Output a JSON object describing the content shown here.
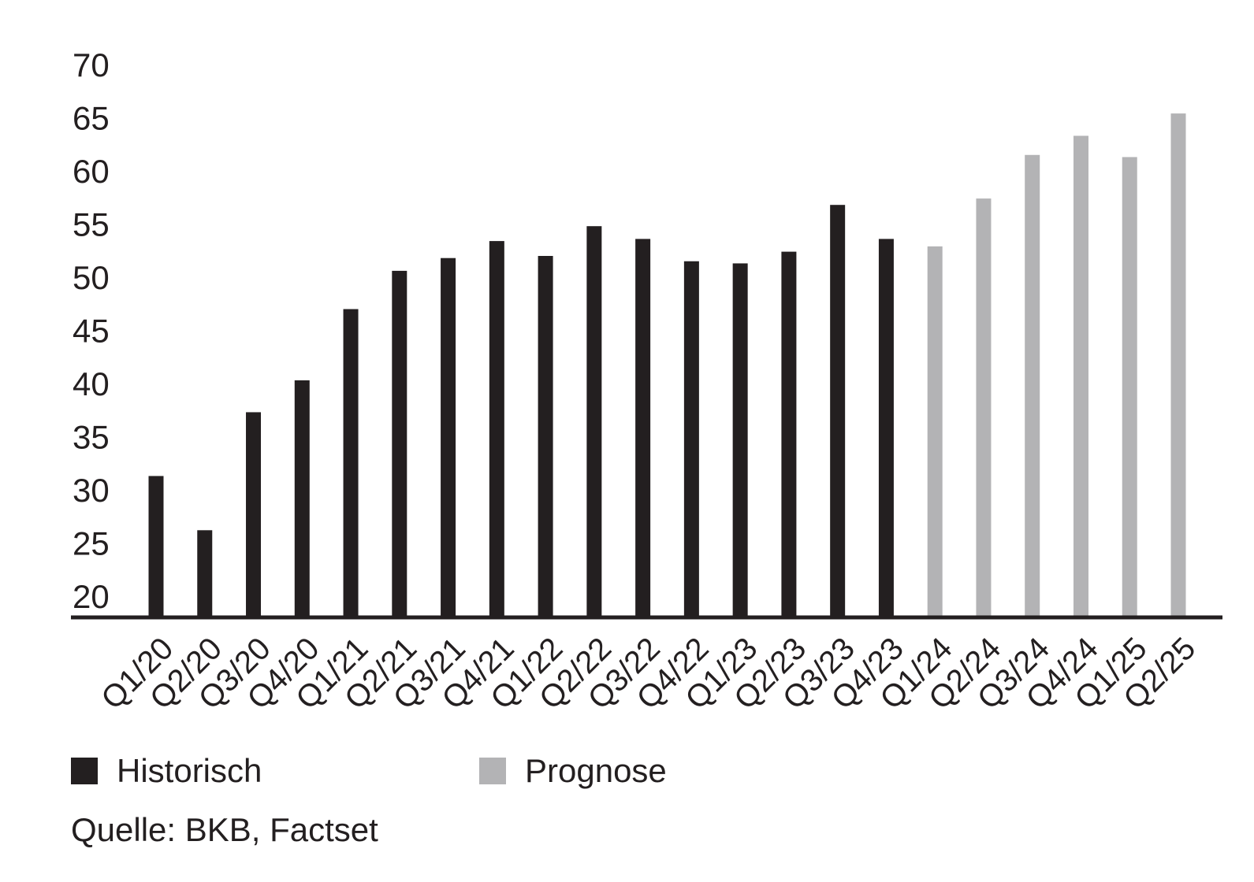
{
  "chart_data": {
    "type": "bar",
    "categories": [
      "Q1/20",
      "Q2/20",
      "Q3/20",
      "Q4/20",
      "Q1/21",
      "Q2/21",
      "Q3/21",
      "Q4/21",
      "Q1/22",
      "Q2/22",
      "Q3/22",
      "Q4/22",
      "Q1/23",
      "Q2/23",
      "Q3/23",
      "Q4/23",
      "Q1/24",
      "Q2/24",
      "Q3/24",
      "Q4/24",
      "Q1/25",
      "Q2/25"
    ],
    "series": [
      {
        "name": "Historisch",
        "color": "#231f20",
        "values": [
          31.3,
          26.2,
          37.3,
          40.3,
          47.0,
          50.6,
          51.8,
          53.4,
          52.0,
          54.8,
          53.6,
          51.5,
          51.3,
          52.4,
          56.8,
          53.6,
          null,
          null,
          null,
          null,
          null,
          null
        ]
      },
      {
        "name": "Prognose",
        "color": "#b3b3b5",
        "values": [
          null,
          null,
          null,
          null,
          null,
          null,
          null,
          null,
          null,
          null,
          null,
          null,
          null,
          null,
          null,
          null,
          52.9,
          57.4,
          61.5,
          63.3,
          61.3,
          65.4
        ]
      }
    ],
    "yticks": [
      20,
      25,
      30,
      35,
      40,
      45,
      50,
      55,
      60,
      65,
      70
    ],
    "ylim": [
      18,
      70
    ],
    "legend_position": "bottom-left",
    "source": "Quelle: BKB, Factset"
  }
}
